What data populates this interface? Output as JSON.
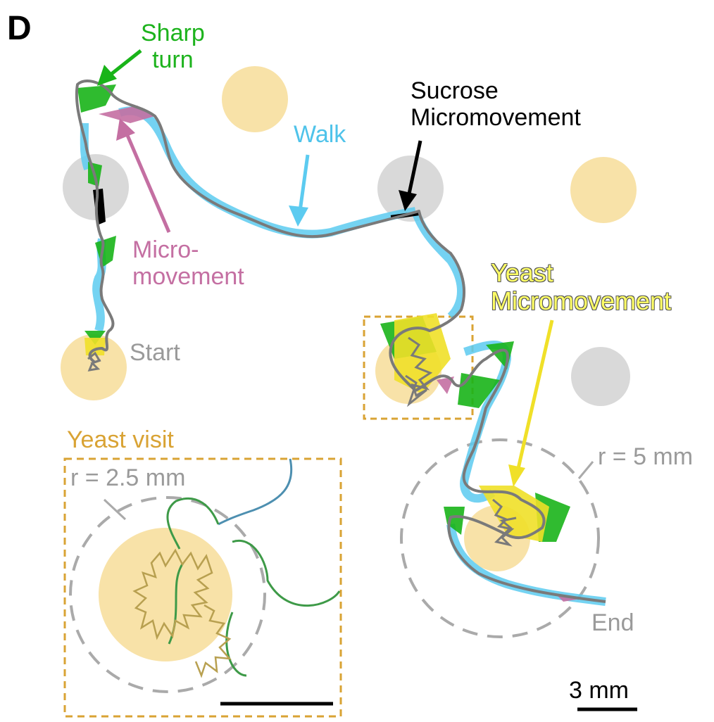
{
  "panel_label": "D",
  "labels": {
    "sharp_turn": [
      "Sharp",
      "turn"
    ],
    "walk": "Walk",
    "sucrose_micromovement": [
      "Sucrose",
      "Micromovement"
    ],
    "micromovement": [
      "Micro-",
      "movement"
    ],
    "yeast_micromovement": [
      "Yeast",
      "Micromovement"
    ],
    "start": "Start",
    "end": "End",
    "yeast_visit": "Yeast visit",
    "radius_small": "r = 2.5 mm",
    "radius_large": "r = 5 mm",
    "scale_bar": "3 mm"
  },
  "colors": {
    "yeast_patch": "#f8e2a8",
    "sucrose_patch": "#d9d9d9",
    "trajectory": "#7a7a7a",
    "walk": "#5ccbf0",
    "sharp_turn": "#19b419",
    "micromovement": "#c46fa2",
    "sucrose_micromovement": "#000000",
    "yeast_micromovement": "#f0e028",
    "yeast_visit_box": "#d9a334",
    "radius_circle": "#aaaaaa",
    "inset_green_path": "#3e9a48",
    "inset_blue_path": "#4d8fb0",
    "inset_gold_path": "#b8a050"
  }
}
